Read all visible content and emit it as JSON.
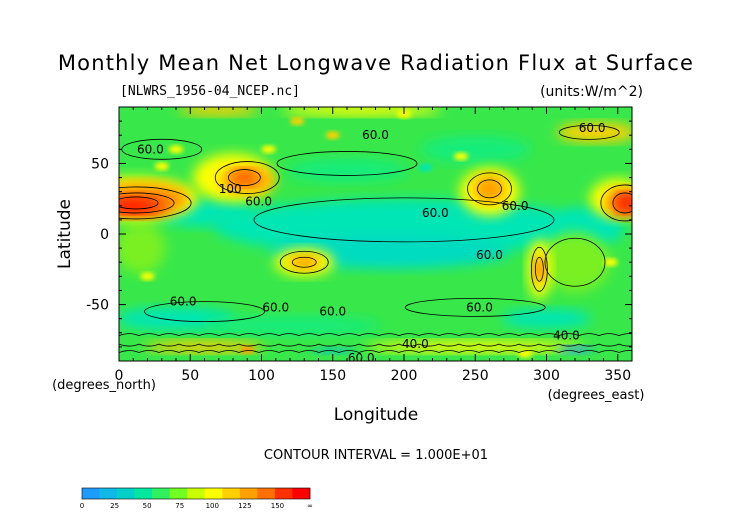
{
  "chart_data": {
    "type": "heatmap",
    "title": "Monthly Mean Net Longwave Radiation Flux at Surface",
    "source_file": "[NLWRS_1956-04_NCEP.nc]",
    "units_note": "(units:W/m^2)",
    "xlabel": "Longitude",
    "ylabel": "Latitude",
    "x_unit_note": "(degrees_east)",
    "y_unit_note": "(degrees_north)",
    "xlim": [
      0,
      360
    ],
    "ylim": [
      -90,
      90
    ],
    "x_ticks": [
      0,
      50,
      100,
      150,
      200,
      250,
      300,
      350
    ],
    "y_ticks": [
      50,
      0,
      -50
    ],
    "contour_interval_text": "CONTOUR INTERVAL = 1.000E+01",
    "contour_labels": [
      {
        "text": "60.0",
        "lon": 22,
        "lat": 60
      },
      {
        "text": "60.0",
        "lon": 180,
        "lat": 70
      },
      {
        "text": "60.0",
        "lon": 98,
        "lat": 23
      },
      {
        "text": "100",
        "lon": 78,
        "lat": 32
      },
      {
        "text": "60.0",
        "lon": 222,
        "lat": 15
      },
      {
        "text": "60.0",
        "lon": 278,
        "lat": 20
      },
      {
        "text": "60.0",
        "lon": 260,
        "lat": -15
      },
      {
        "text": "60.0",
        "lon": 45,
        "lat": -48
      },
      {
        "text": "60.0",
        "lon": 110,
        "lat": -52
      },
      {
        "text": "60.0",
        "lon": 150,
        "lat": -55
      },
      {
        "text": "60.0",
        "lon": 253,
        "lat": -52
      },
      {
        "text": "40.0",
        "lon": 208,
        "lat": -78
      },
      {
        "text": "40.0",
        "lon": 314,
        "lat": -72
      },
      {
        "text": "60.0",
        "lon": 332,
        "lat": 75
      },
      {
        "text": "60.0",
        "lon": 170,
        "lat": -88
      }
    ],
    "colorbar": {
      "levels": [
        0,
        12.5,
        25,
        37.5,
        50,
        62.5,
        75,
        87.5,
        100,
        112.5,
        125,
        137.5,
        150
      ],
      "tick_labels": [
        "0",
        "25",
        "50",
        "75",
        "100",
        "125",
        "150",
        "∞"
      ],
      "colors": [
        "#1e9bff",
        "#10b8e8",
        "#00d0c8",
        "#00e8a0",
        "#30f060",
        "#70ff20",
        "#c8ff00",
        "#ffff00",
        "#ffd000",
        "#ffa000",
        "#ff7000",
        "#ff3000",
        "#ff0000"
      ]
    }
  }
}
